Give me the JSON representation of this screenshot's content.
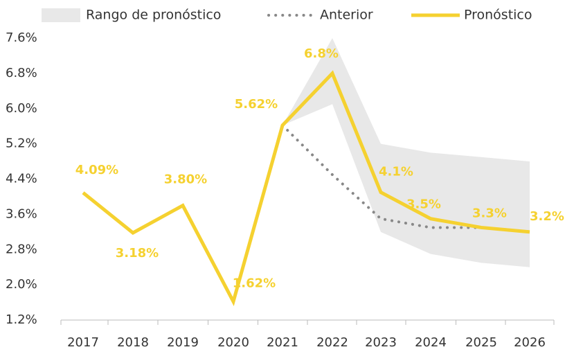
{
  "chart_data": {
    "type": "line",
    "categories": [
      "2017",
      "2018",
      "2019",
      "2020",
      "2021",
      "2022",
      "2023",
      "2024",
      "2025",
      "2026"
    ],
    "ylim": [
      1.2,
      7.6
    ],
    "yticks": [
      {
        "value": 1.2,
        "label": "1.2%"
      },
      {
        "value": 2.0,
        "label": "2.0%"
      },
      {
        "value": 2.8,
        "label": "2.8%"
      },
      {
        "value": 3.6,
        "label": "3.6%"
      },
      {
        "value": 4.4,
        "label": "4.4%"
      },
      {
        "value": 5.2,
        "label": "5.2%"
      },
      {
        "value": 6.0,
        "label": "6.0%"
      },
      {
        "value": 6.8,
        "label": "6.8%"
      },
      {
        "value": 7.6,
        "label": "7.6%"
      }
    ],
    "grid": false,
    "legend": "top",
    "range": {
      "name": "Rango de pronóstico",
      "color": "#e8e8e8",
      "lower": [
        null,
        null,
        null,
        null,
        5.62,
        6.1,
        3.2,
        2.7,
        2.5,
        2.4
      ],
      "upper": [
        null,
        null,
        null,
        null,
        5.62,
        7.6,
        5.2,
        5.0,
        4.9,
        4.8
      ]
    },
    "series": [
      {
        "name": "Anterior",
        "color": "#888888",
        "style": "dotted",
        "values": [
          null,
          null,
          null,
          null,
          5.62,
          4.5,
          3.5,
          3.3,
          3.3,
          null
        ]
      },
      {
        "name": "Pronóstico",
        "color": "#f5d130",
        "style": "solid",
        "values": [
          4.09,
          3.18,
          3.8,
          1.62,
          5.62,
          6.8,
          4.1,
          3.5,
          3.3,
          3.2
        ],
        "value_labels": [
          "4.09%",
          "3.18%",
          "3.80%",
          "1.62%",
          "5.62%",
          "6.8%",
          "4.1%",
          "3.5%",
          "3.3%",
          "3.2%"
        ]
      }
    ]
  }
}
